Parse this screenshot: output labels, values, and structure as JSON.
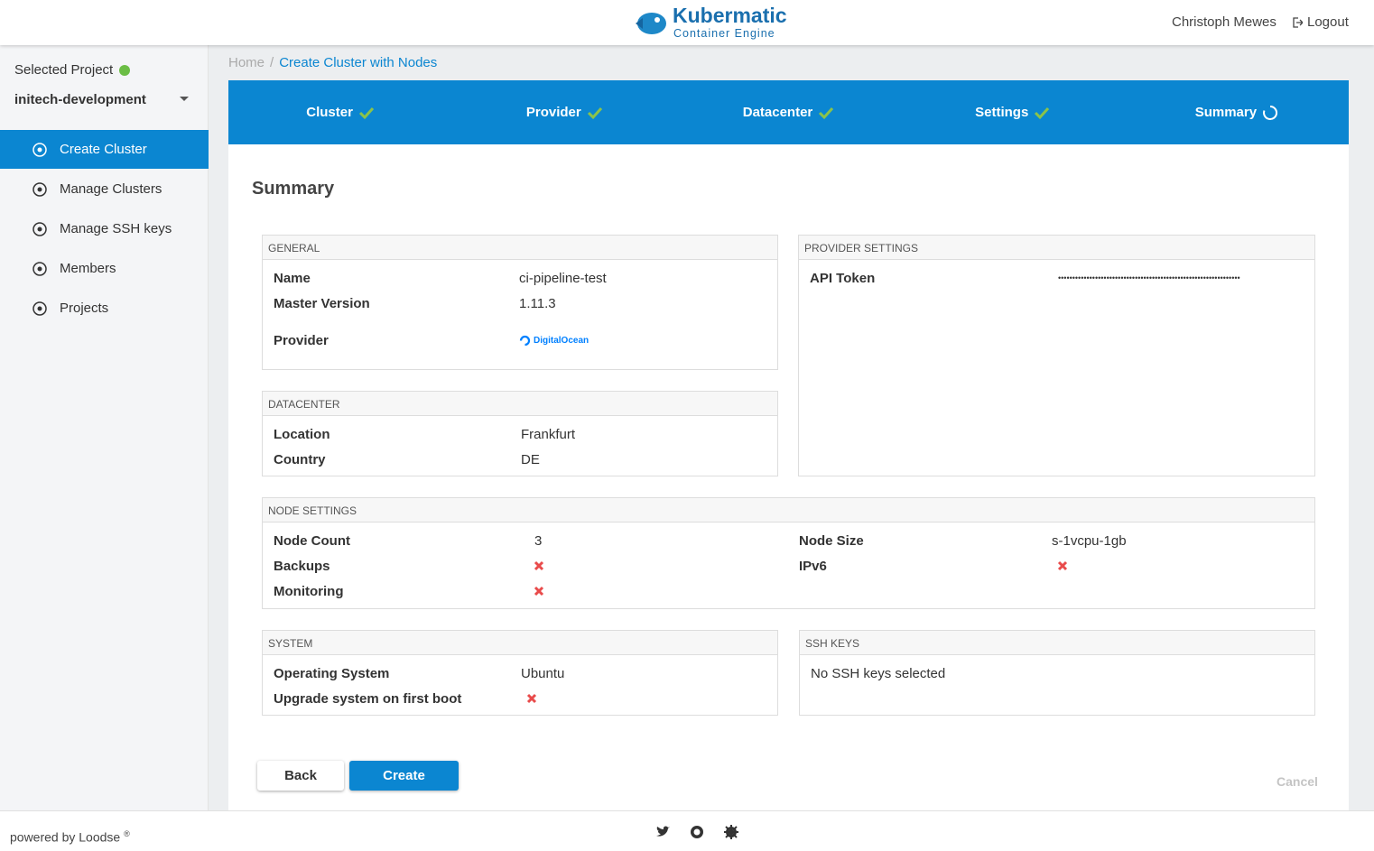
{
  "header": {
    "brand": "Kubermatic",
    "subtitle": "Container Engine",
    "user": "Christoph Mewes",
    "logout": "Logout"
  },
  "sidebar": {
    "project_label": "Selected Project",
    "project": "initech-development",
    "nav": [
      {
        "label": "Create Cluster",
        "active": true
      },
      {
        "label": "Manage Clusters",
        "active": false
      },
      {
        "label": "Manage SSH keys",
        "active": false
      },
      {
        "label": "Members",
        "active": false
      },
      {
        "label": "Projects",
        "active": false
      }
    ]
  },
  "breadcrumb": [
    "Home",
    "Create Cluster with Nodes"
  ],
  "steps": [
    {
      "label": "Cluster",
      "done": true
    },
    {
      "label": "Provider",
      "done": true
    },
    {
      "label": "Datacenter",
      "done": true
    },
    {
      "label": "Settings",
      "done": true
    },
    {
      "label": "Summary",
      "done": false
    }
  ],
  "summary": {
    "title": "Summary",
    "general": {
      "heading": "GENERAL",
      "rows": [
        {
          "label": "Name",
          "value": "ci-pipeline-test"
        },
        {
          "label": "Master Version",
          "value": "1.11.3"
        },
        {
          "label": "Provider",
          "value": "DigitalOcean"
        }
      ]
    },
    "provider_settings": {
      "heading": "PROVIDER SETTINGS",
      "rows": [
        {
          "label": "API Token",
          "value": "••••••••••••••••••••••••••••••••••••••••••••••••••••••••••••••••"
        }
      ]
    },
    "datacenter": {
      "heading": "DATACENTER",
      "rows": [
        {
          "label": "Location",
          "value": "Frankfurt"
        },
        {
          "label": "Country",
          "value": "DE"
        }
      ]
    },
    "node_settings": {
      "heading": "NODE SETTINGS",
      "rows": [
        {
          "label": "Node Count",
          "value": 3
        },
        {
          "label": "Node Size",
          "value": "s-1vcpu-1gb"
        },
        {
          "label": "Backups",
          "value": false
        },
        {
          "label": "IPv6",
          "value": false
        },
        {
          "label": "Monitoring",
          "value": false
        }
      ]
    },
    "system": {
      "heading": "SYSTEM",
      "rows": [
        {
          "label": "Operating System",
          "value": "Ubuntu"
        },
        {
          "label": "Upgrade system on first boot",
          "value": false
        }
      ]
    },
    "ssh_keys": {
      "heading": "SSH KEYS",
      "text": "No SSH keys selected"
    }
  },
  "buttons": {
    "back": "Back",
    "create": "Create",
    "cancel": "Cancel"
  },
  "footer": {
    "powered_by": "powered by Loodse",
    "mark": "®"
  }
}
